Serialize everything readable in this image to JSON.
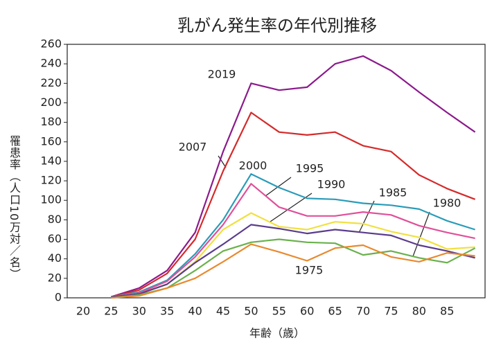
{
  "chart_data": {
    "type": "line",
    "title": "乳がん発生率の年代別推移",
    "x_label": "年齢（歳）",
    "y_label": "罹患率（人口10万対／名）",
    "categories": [
      "20",
      "25",
      "30",
      "35",
      "40",
      "45",
      "50",
      "55",
      "60",
      "65",
      "70",
      "75",
      "80",
      "85",
      null
    ],
    "ylim": [
      0,
      260
    ],
    "yticks": [
      0,
      20,
      40,
      60,
      80,
      100,
      120,
      140,
      160,
      180,
      200,
      220,
      240,
      260
    ],
    "series": [
      {
        "name": "2019",
        "color": "#8b1a8b",
        "values": [
          null,
          1,
          10,
          28,
          67,
          150,
          220,
          213,
          216,
          240,
          248,
          233,
          211,
          190,
          170
        ]
      },
      {
        "name": "2007",
        "color": "#d42a2a",
        "values": [
          null,
          1,
          8,
          25,
          60,
          130,
          190,
          170,
          167,
          170,
          156,
          150,
          126,
          112,
          101
        ]
      },
      {
        "name": "2000",
        "color": "#2a9bb8",
        "values": [
          null,
          1,
          6,
          18,
          45,
          80,
          127,
          113,
          102,
          101,
          97,
          95,
          91,
          79,
          70
        ]
      },
      {
        "name": "1995",
        "color": "#e0509a",
        "values": [
          null,
          1,
          5,
          17,
          42,
          75,
          117,
          93,
          84,
          84,
          88,
          85,
          74,
          67,
          61
        ]
      },
      {
        "name": "1990",
        "color": "#f0e040",
        "values": [
          null,
          1,
          4,
          14,
          37,
          70,
          87,
          73,
          70,
          78,
          76,
          68,
          62,
          50,
          52
        ]
      },
      {
        "name": "1985",
        "color": "#5a3c8c",
        "values": [
          null,
          1,
          4,
          14,
          36,
          55,
          75,
          71,
          66,
          70,
          67,
          64,
          54,
          48,
          41
        ]
      },
      {
        "name": "1980",
        "color": "#6ab04c",
        "values": [
          null,
          0,
          3,
          10,
          28,
          48,
          57,
          60,
          57,
          56,
          44,
          48,
          41,
          36,
          51
        ]
      },
      {
        "name": "1975",
        "color": "#e8892e",
        "values": [
          null,
          0,
          2,
          10,
          20,
          37,
          55,
          47,
          38,
          51,
          54,
          42,
          37,
          46,
          43
        ]
      }
    ]
  }
}
